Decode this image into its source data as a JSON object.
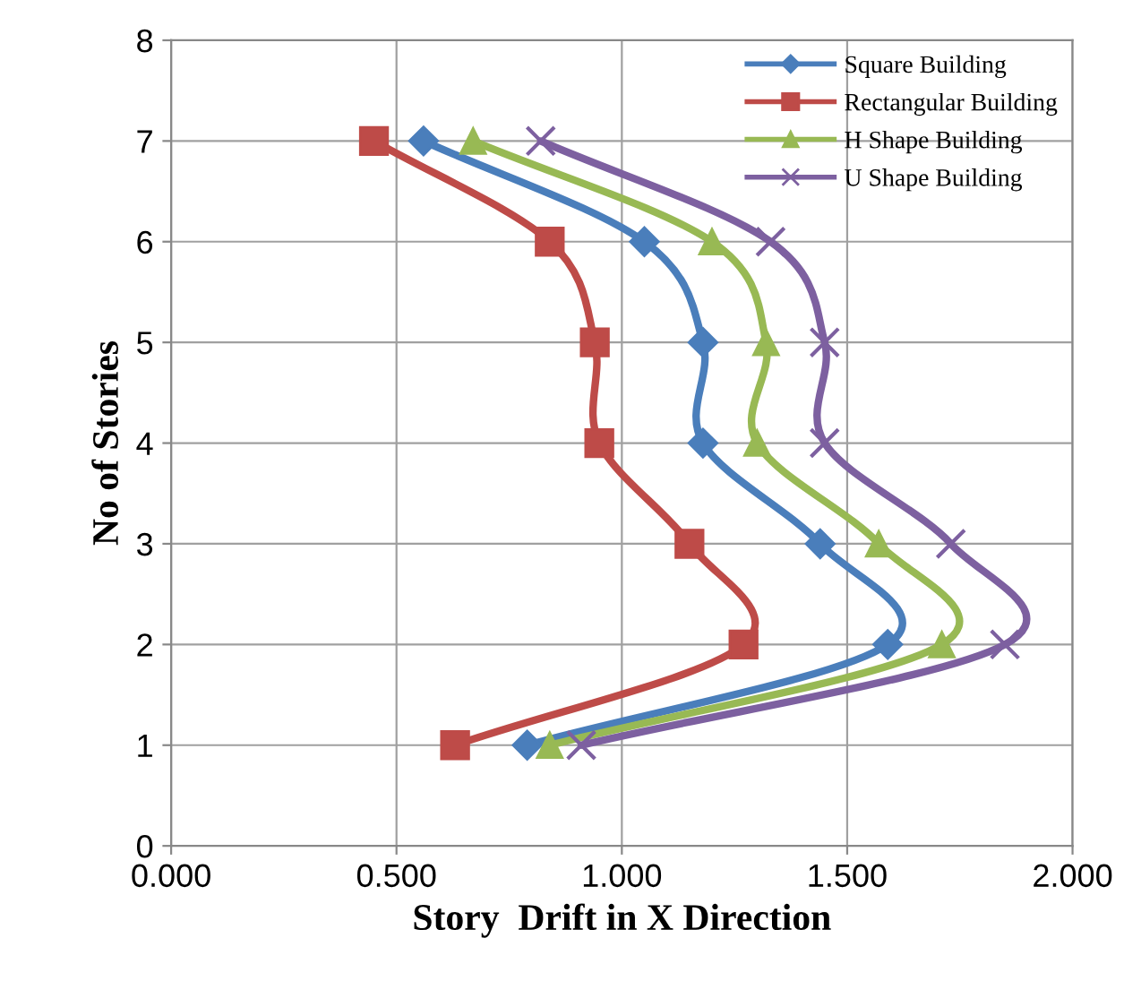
{
  "chart_data": {
    "type": "line",
    "xlabel": "Story  Drift in X Direction",
    "ylabel": "No of Stories",
    "xlim": [
      0,
      2
    ],
    "xticks": [
      {
        "value": 0,
        "label": "0.000"
      },
      {
        "value": 0.5,
        "label": "0.500"
      },
      {
        "value": 1,
        "label": "1.000"
      },
      {
        "value": 1.5,
        "label": "1.500"
      },
      {
        "value": 2,
        "label": "2.000"
      }
    ],
    "ylim": [
      0,
      8
    ],
    "yticks": [
      0,
      1,
      2,
      3,
      4,
      5,
      6,
      7,
      8
    ],
    "grid": true,
    "legend": "top right",
    "series": [
      {
        "name": "Square Building",
        "color": "#4a7ebb",
        "marker": "diamond",
        "x": [
          0.79,
          1.59,
          1.44,
          1.18,
          1.18,
          1.05,
          0.56
        ],
        "values": [
          1,
          2,
          3,
          4,
          5,
          6,
          7
        ]
      },
      {
        "name": "Rectangular Building",
        "color": "#be4b48",
        "marker": "square",
        "x": [
          0.63,
          1.27,
          1.15,
          0.95,
          0.94,
          0.84,
          0.45
        ],
        "values": [
          1,
          2,
          3,
          4,
          5,
          6,
          7
        ]
      },
      {
        "name": "H Shape Building",
        "color": "#98b954",
        "marker": "triangle",
        "x": [
          0.84,
          1.71,
          1.57,
          1.3,
          1.32,
          1.2,
          0.67
        ],
        "values": [
          1,
          2,
          3,
          4,
          5,
          6,
          7
        ]
      },
      {
        "name": "U Shape Building",
        "color": "#7d60a0",
        "marker": "cross",
        "x": [
          0.91,
          1.85,
          1.73,
          1.45,
          1.45,
          1.33,
          0.82
        ],
        "values": [
          1,
          2,
          3,
          4,
          5,
          6,
          7
        ]
      }
    ]
  }
}
